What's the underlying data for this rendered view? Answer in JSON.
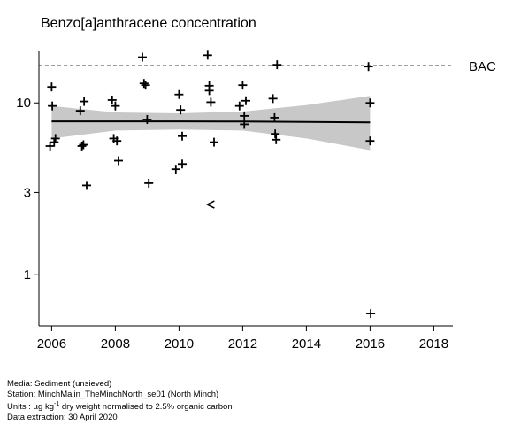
{
  "chart_data": {
    "type": "scatter",
    "title": "Benzo[a]anthracene concentration",
    "xlabel": "",
    "ylabel": "",
    "scale_y": "log",
    "xlim": [
      2005.6,
      2018.6
    ],
    "ylim": [
      0.5,
      20
    ],
    "x_ticks": [
      2006,
      2008,
      2010,
      2012,
      2014,
      2016,
      2018
    ],
    "y_ticks": [
      1,
      3,
      10
    ],
    "grid": false,
    "reference_line": {
      "label": "BAC",
      "value": 16.5,
      "style": "dashed"
    },
    "trend": {
      "x": [
        2006,
        2008,
        2010,
        2012,
        2014,
        2016
      ],
      "y": [
        7.8,
        7.8,
        7.8,
        7.78,
        7.75,
        7.7
      ],
      "lower": [
        6.2,
        6.9,
        7.0,
        6.9,
        6.2,
        5.3
      ],
      "upper": [
        9.6,
        8.8,
        8.7,
        8.9,
        9.7,
        11.0
      ]
    },
    "points": [
      {
        "x": 2005.95,
        "y": 5.6
      },
      {
        "x": 2006.0,
        "y": 12.4
      },
      {
        "x": 2006.02,
        "y": 9.6
      },
      {
        "x": 2006.08,
        "y": 5.9
      },
      {
        "x": 2006.12,
        "y": 6.2
      },
      {
        "x": 2006.9,
        "y": 9.0
      },
      {
        "x": 2006.95,
        "y": 5.6
      },
      {
        "x": 2007.0,
        "y": 5.7
      },
      {
        "x": 2007.02,
        "y": 10.2
      },
      {
        "x": 2007.1,
        "y": 3.3
      },
      {
        "x": 2007.9,
        "y": 10.4
      },
      {
        "x": 2007.95,
        "y": 6.2
      },
      {
        "x": 2008.0,
        "y": 9.6
      },
      {
        "x": 2008.05,
        "y": 6.0
      },
      {
        "x": 2008.1,
        "y": 4.6
      },
      {
        "x": 2008.85,
        "y": 18.5
      },
      {
        "x": 2008.9,
        "y": 13.0
      },
      {
        "x": 2008.95,
        "y": 12.7
      },
      {
        "x": 2009.0,
        "y": 8.0
      },
      {
        "x": 2009.05,
        "y": 3.4
      },
      {
        "x": 2009.9,
        "y": 4.1
      },
      {
        "x": 2010.0,
        "y": 11.2
      },
      {
        "x": 2010.05,
        "y": 9.1
      },
      {
        "x": 2010.1,
        "y": 6.4
      },
      {
        "x": 2010.1,
        "y": 4.4
      },
      {
        "x": 2010.9,
        "y": 19.0
      },
      {
        "x": 2010.95,
        "y": 12.6
      },
      {
        "x": 2010.95,
        "y": 11.8
      },
      {
        "x": 2011.0,
        "y": 10.1
      },
      {
        "x": 2011.1,
        "y": 5.9
      },
      {
        "x": 2011.9,
        "y": 9.6
      },
      {
        "x": 2012.0,
        "y": 12.7
      },
      {
        "x": 2012.05,
        "y": 8.4
      },
      {
        "x": 2012.05,
        "y": 7.5
      },
      {
        "x": 2012.1,
        "y": 10.3
      },
      {
        "x": 2012.95,
        "y": 10.6
      },
      {
        "x": 2013.0,
        "y": 8.2
      },
      {
        "x": 2013.02,
        "y": 6.6
      },
      {
        "x": 2013.05,
        "y": 6.1
      },
      {
        "x": 2013.08,
        "y": 16.7
      },
      {
        "x": 2015.95,
        "y": 16.3
      },
      {
        "x": 2016.0,
        "y": 10.0
      },
      {
        "x": 2016.0,
        "y": 6.0
      },
      {
        "x": 2016.02,
        "y": 0.59
      }
    ],
    "less_than_points": [
      {
        "x": 2011.0,
        "y": 2.55
      }
    ]
  },
  "footer": {
    "media": "Media: Sediment (unsieved)",
    "station": "Station: MinchMalin_TheMinchNorth_se01 (North Minch)",
    "units_prefix": "Units : µg kg",
    "units_sup": "-1",
    "units_suffix": " dry weight normalised to 2.5% organic carbon",
    "extraction": "Data extraction: 30 April 2020"
  }
}
